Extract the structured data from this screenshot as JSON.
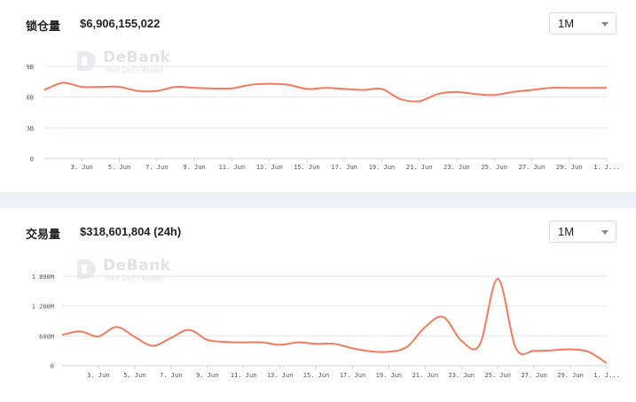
{
  "tvl_panel": {
    "label": "锁仓量",
    "value": "$6,906,155,022",
    "period": "1M"
  },
  "volume_panel": {
    "label": "交易量",
    "value": "$318,601,804 (24h)",
    "period": "1M"
  },
  "watermark": {
    "name": "DeBank",
    "tagline": "Your DeFi Wallet"
  },
  "colors": {
    "line": "#f47a5e",
    "grid": "#e3e6ea",
    "background": "#eef1f6"
  },
  "chart_data": [
    {
      "type": "line",
      "title": "锁仓量",
      "xlabel": "",
      "ylabel": "",
      "x_tick_labels": [
        "3. Jun",
        "5. Jun",
        "7. Jun",
        "9. Jun",
        "11. Jun",
        "13. Jun",
        "15. Jun",
        "17. Jun",
        "19. Jun",
        "21. Jun",
        "23. Jun",
        "25. Jun",
        "27. Jun",
        "29. Jun",
        "1. J..."
      ],
      "y_tick_labels": [
        "0",
        "3B",
        "6B",
        "9B"
      ],
      "ylim": [
        0,
        9000000000
      ],
      "x": [
        1,
        2,
        3,
        4,
        5,
        6,
        7,
        8,
        9,
        10,
        11,
        12,
        13,
        14,
        15,
        16,
        17,
        18,
        19,
        20,
        21,
        22,
        23,
        24,
        25,
        26,
        27,
        28,
        29,
        30,
        31
      ],
      "values": [
        6.7,
        7.4,
        7.0,
        7.0,
        7.0,
        6.6,
        6.6,
        7.0,
        6.9,
        6.85,
        6.85,
        7.2,
        7.3,
        7.2,
        6.8,
        6.9,
        6.8,
        6.7,
        6.8,
        5.8,
        5.6,
        6.3,
        6.5,
        6.3,
        6.2,
        6.5,
        6.7,
        6.9,
        6.9,
        6.9,
        6.9
      ]
    },
    {
      "type": "line",
      "title": "交易量",
      "xlabel": "",
      "ylabel": "",
      "x_tick_labels": [
        "3. Jun",
        "5. Jun",
        "7. Jun",
        "9. Jun",
        "11. Jun",
        "13. Jun",
        "15. Jun",
        "17. Jun",
        "19. Jun",
        "21. Jun",
        "23. Jun",
        "25. Jun",
        "27. Jun",
        "29. Jun",
        "1. J..."
      ],
      "y_tick_labels": [
        "0",
        "600M",
        "1 200M",
        "1 800M"
      ],
      "ylim": [
        0,
        1800000000
      ],
      "x": [
        1,
        2,
        3,
        4,
        5,
        6,
        7,
        8,
        9,
        10,
        11,
        12,
        13,
        14,
        15,
        16,
        17,
        18,
        19,
        20,
        21,
        22,
        23,
        24,
        25,
        26,
        27,
        28,
        29,
        30,
        31
      ],
      "values": [
        620,
        690,
        590,
        780,
        580,
        400,
        560,
        720,
        520,
        480,
        470,
        470,
        420,
        470,
        440,
        440,
        350,
        290,
        280,
        380,
        780,
        980,
        500,
        420,
        1750,
        350,
        300,
        310,
        330,
        280,
        50
      ]
    }
  ]
}
